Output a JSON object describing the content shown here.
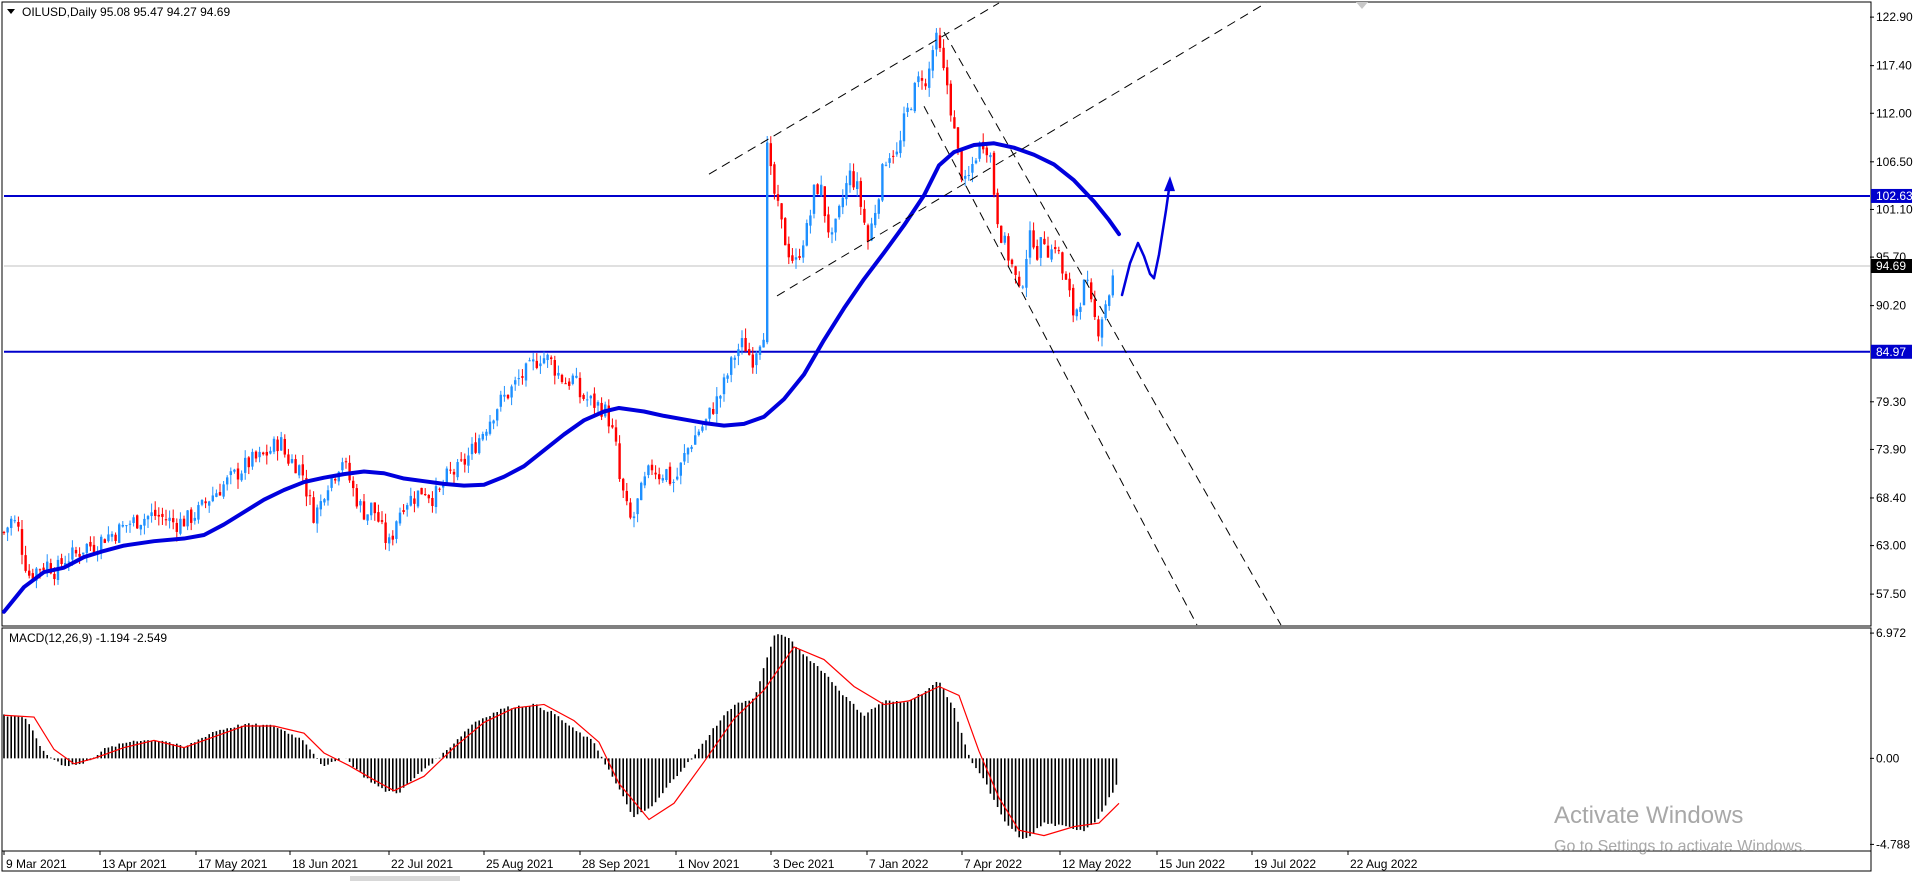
{
  "header": {
    "symbol_line": "OILUSD,Daily  95.08 95.47 94.27 94.69"
  },
  "macd_header": "MACD(12,26,9) -1.194 -2.549",
  "watermark": {
    "line1": "Activate Windows",
    "line2": "Go to Settings to activate Windows."
  },
  "colors": {
    "bull": "#1e90ff",
    "bear": "#ff0000",
    "ma": "#0000dd",
    "hline": "#0000cc",
    "macd_hist": "#000000",
    "macd_signal": "#ff0000",
    "current_line": "#c0c0c0"
  },
  "chart_data": [
    {
      "type": "candlestick",
      "panel": "price",
      "symbol": "OILUSD",
      "timeframe": "Daily",
      "last_bar": {
        "open": 95.08,
        "high": 95.47,
        "low": 94.27,
        "close": 94.69
      },
      "ylim": [
        54.0,
        124.5
      ],
      "yticks": [
        122.9,
        117.4,
        112.0,
        106.5,
        101.1,
        95.7,
        90.2,
        79.3,
        73.9,
        68.4,
        63.0,
        57.5
      ],
      "ytick_labels": [
        "122.90",
        "117.40",
        "112.00",
        "106.50",
        "101.10",
        "95.70",
        "90.20",
        "79.30",
        "73.90",
        "68.40",
        "63.00",
        "57.50"
      ],
      "xtick_labels": [
        "9 Mar 2021",
        "13 Apr 2021",
        "17 May 2021",
        "18 Jun 2021",
        "22 Jul 2021",
        "25 Aug 2021",
        "28 Sep 2021",
        "1 Nov 2021",
        "3 Dec 2021",
        "7 Jan 2022",
        "7 Apr 2022",
        "12 May 2022",
        "15 Jun 2022",
        "19 Jul 2022",
        "22 Aug 2022"
      ],
      "price_path": [
        [
          0,
          64.5
        ],
        [
          8,
          66
        ],
        [
          14,
          65
        ],
        [
          20,
          61.5
        ],
        [
          26,
          59.5
        ],
        [
          34,
          60.5
        ],
        [
          44,
          61
        ],
        [
          52,
          60
        ],
        [
          60,
          61.5
        ],
        [
          72,
          62
        ],
        [
          82,
          63
        ],
        [
          92,
          63
        ],
        [
          100,
          64
        ],
        [
          112,
          64.5
        ],
        [
          124,
          65.5
        ],
        [
          136,
          66
        ],
        [
          150,
          66.5
        ],
        [
          162,
          66
        ],
        [
          172,
          65.5
        ],
        [
          184,
          66
        ],
        [
          196,
          67
        ],
        [
          206,
          68.5
        ],
        [
          216,
          69.5
        ],
        [
          226,
          70.5
        ],
        [
          236,
          71.5
        ],
        [
          246,
          72.5
        ],
        [
          258,
          73
        ],
        [
          268,
          74
        ],
        [
          276,
          75
        ],
        [
          282,
          73
        ],
        [
          290,
          72.5
        ],
        [
          298,
          71.5
        ],
        [
          304,
          68.5
        ],
        [
          310,
          66.5
        ],
        [
          316,
          67.5
        ],
        [
          322,
          70
        ],
        [
          330,
          71
        ],
        [
          338,
          73
        ],
        [
          344,
          71
        ],
        [
          350,
          69
        ],
        [
          356,
          67.5
        ],
        [
          362,
          66.5
        ],
        [
          368,
          67.5
        ],
        [
          374,
          66
        ],
        [
          380,
          64
        ],
        [
          386,
          63
        ],
        [
          392,
          66
        ],
        [
          400,
          68
        ],
        [
          410,
          68.5
        ],
        [
          420,
          69.5
        ],
        [
          428,
          68.5
        ],
        [
          436,
          69
        ],
        [
          444,
          71
        ],
        [
          454,
          71.5
        ],
        [
          464,
          73
        ],
        [
          474,
          75
        ],
        [
          484,
          77
        ],
        [
          494,
          79
        ],
        [
          506,
          80.5
        ],
        [
          516,
          82
        ],
        [
          526,
          83
        ],
        [
          536,
          84.5
        ],
        [
          546,
          84
        ],
        [
          554,
          82.5
        ],
        [
          562,
          81.5
        ],
        [
          570,
          82
        ],
        [
          576,
          80
        ],
        [
          584,
          79.5
        ],
        [
          592,
          79
        ],
        [
          600,
          78.5
        ],
        [
          606,
          77
        ],
        [
          612,
          74
        ],
        [
          616,
          70
        ],
        [
          620,
          68.5
        ],
        [
          624,
          66.5
        ],
        [
          628,
          65.5
        ],
        [
          634,
          68
        ],
        [
          640,
          70
        ],
        [
          648,
          72
        ],
        [
          656,
          71
        ],
        [
          662,
          71.5
        ],
        [
          668,
          70
        ],
        [
          674,
          71
        ],
        [
          680,
          73
        ],
        [
          686,
          74.5
        ],
        [
          694,
          76
        ],
        [
          702,
          77
        ],
        [
          708,
          78.5
        ],
        [
          716,
          80
        ],
        [
          724,
          82.5
        ],
        [
          732,
          85
        ],
        [
          740,
          86
        ],
        [
          748,
          84
        ],
        [
          754,
          86
        ],
        [
          760,
          87.5
        ],
        [
          763,
          108
        ],
        [
          768,
          104
        ],
        [
          774,
          101
        ],
        [
          780,
          98
        ],
        [
          786,
          96
        ],
        [
          792,
          95
        ],
        [
          798,
          97.5
        ],
        [
          804,
          99
        ],
        [
          810,
          103
        ],
        [
          816,
          104
        ],
        [
          822,
          100
        ],
        [
          828,
          97.5
        ],
        [
          834,
          100
        ],
        [
          840,
          103
        ],
        [
          846,
          105
        ],
        [
          852,
          104
        ],
        [
          858,
          101
        ],
        [
          864,
          97.5
        ],
        [
          870,
          100.5
        ],
        [
          876,
          104
        ],
        [
          882,
          107
        ],
        [
          888,
          108
        ],
        [
          894,
          107
        ],
        [
          900,
          111
        ],
        [
          906,
          113
        ],
        [
          912,
          115
        ],
        [
          918,
          116.5
        ],
        [
          922,
          114.5
        ],
        [
          928,
          119
        ],
        [
          934,
          120.5
        ],
        [
          938,
          117
        ],
        [
          944,
          115
        ],
        [
          950,
          110
        ],
        [
          956,
          106
        ],
        [
          962,
          103.5
        ],
        [
          968,
          106
        ],
        [
          974,
          108
        ],
        [
          980,
          109
        ],
        [
          986,
          107.5
        ],
        [
          992,
          101
        ],
        [
          998,
          98
        ],
        [
          1004,
          96
        ],
        [
          1010,
          94
        ],
        [
          1016,
          91
        ],
        [
          1022,
          96
        ],
        [
          1028,
          98.5
        ],
        [
          1034,
          96
        ],
        [
          1040,
          98
        ],
        [
          1046,
          96
        ],
        [
          1052,
          97.5
        ],
        [
          1058,
          94
        ],
        [
          1064,
          92
        ],
        [
          1070,
          89
        ],
        [
          1076,
          91
        ],
        [
          1082,
          93
        ],
        [
          1088,
          89.5
        ],
        [
          1094,
          87.5
        ],
        [
          1100,
          90
        ],
        [
          1106,
          92
        ],
        [
          1112,
          94.7
        ]
      ],
      "moving_average_path": [
        [
          0,
          55.5
        ],
        [
          20,
          58.3
        ],
        [
          40,
          60
        ],
        [
          60,
          60.5
        ],
        [
          80,
          61.7
        ],
        [
          100,
          62.4
        ],
        [
          120,
          63
        ],
        [
          150,
          63.5
        ],
        [
          180,
          63.8
        ],
        [
          200,
          64.2
        ],
        [
          220,
          65.4
        ],
        [
          240,
          66.8
        ],
        [
          260,
          68.2
        ],
        [
          280,
          69.3
        ],
        [
          300,
          70.2
        ],
        [
          320,
          70.7
        ],
        [
          340,
          71.1
        ],
        [
          360,
          71.4
        ],
        [
          380,
          71.2
        ],
        [
          400,
          70.6
        ],
        [
          420,
          70.3
        ],
        [
          440,
          70
        ],
        [
          460,
          69.8
        ],
        [
          480,
          69.9
        ],
        [
          500,
          70.8
        ],
        [
          520,
          72
        ],
        [
          540,
          73.8
        ],
        [
          560,
          75.6
        ],
        [
          580,
          77.2
        ],
        [
          600,
          78.2
        ],
        [
          615,
          78.6
        ],
        [
          640,
          78.2
        ],
        [
          660,
          77.7
        ],
        [
          680,
          77.3
        ],
        [
          700,
          76.9
        ],
        [
          720,
          76.6
        ],
        [
          740,
          76.8
        ],
        [
          760,
          77.6
        ],
        [
          780,
          79.6
        ],
        [
          800,
          82.4
        ],
        [
          820,
          86.3
        ],
        [
          840,
          89.9
        ],
        [
          860,
          93.2
        ],
        [
          880,
          96.2
        ],
        [
          900,
          99.3
        ],
        [
          920,
          102.7
        ],
        [
          935,
          106.1
        ],
        [
          950,
          107.6
        ],
        [
          970,
          108.4
        ],
        [
          990,
          108.6
        ],
        [
          1010,
          108.1
        ],
        [
          1030,
          107.3
        ],
        [
          1050,
          106.2
        ],
        [
          1070,
          104.4
        ],
        [
          1090,
          102
        ],
        [
          1105,
          99.9
        ],
        [
          1115,
          98.3
        ]
      ],
      "horizontal_levels": [
        {
          "value": 102.63,
          "label": "102.63"
        },
        {
          "value": 84.97,
          "label": "84.97"
        }
      ],
      "current_price": {
        "value": 94.69,
        "label": "94.69"
      },
      "trendlines_dashed": [
        [
          [
            705,
            105.1
          ],
          [
            995,
            124.5
          ]
        ],
        [
          [
            773,
            91.3
          ],
          [
            1262,
            124.5
          ]
        ],
        [
          [
            920,
            112.8
          ],
          [
            1193,
            54.0
          ]
        ],
        [
          [
            940,
            121.2
          ],
          [
            1277,
            54.0
          ]
        ]
      ],
      "forecast_path": [
        [
          1118,
          91.4
        ],
        [
          1126,
          95
        ],
        [
          1134,
          97.3
        ],
        [
          1140,
          95.8
        ],
        [
          1146,
          93.8
        ],
        [
          1150,
          93.3
        ],
        [
          1155,
          96
        ],
        [
          1162,
          101
        ],
        [
          1166,
          104.2
        ]
      ]
    },
    {
      "type": "bar",
      "panel": "macd",
      "name": "MACD(12,26,9)",
      "last_values": {
        "macd": -1.194,
        "signal": -2.549
      },
      "ylim": [
        -5.1,
        7.2
      ],
      "yticks": [
        6.972,
        0.0,
        -4.788
      ],
      "ytick_labels": [
        "6.972",
        "0.00",
        "-4.788"
      ],
      "histogram_path": [
        [
          0,
          2.4
        ],
        [
          20,
          2.3
        ],
        [
          30,
          1.4
        ],
        [
          40,
          0.3
        ],
        [
          60,
          -0.4
        ],
        [
          80,
          -0.3
        ],
        [
          100,
          0.5
        ],
        [
          130,
          1.0
        ],
        [
          160,
          1.0
        ],
        [
          180,
          0.6
        ],
        [
          210,
          1.5
        ],
        [
          240,
          1.9
        ],
        [
          270,
          1.8
        ],
        [
          300,
          1.0
        ],
        [
          320,
          -0.5
        ],
        [
          340,
          0.1
        ],
        [
          360,
          -1.0
        ],
        [
          380,
          -1.8
        ],
        [
          395,
          -1.9
        ],
        [
          420,
          -0.6
        ],
        [
          440,
          0.3
        ],
        [
          470,
          2.0
        ],
        [
          500,
          2.8
        ],
        [
          530,
          3.0
        ],
        [
          550,
          2.5
        ],
        [
          570,
          1.6
        ],
        [
          590,
          0.9
        ],
        [
          610,
          -1.2
        ],
        [
          630,
          -3.3
        ],
        [
          650,
          -2.6
        ],
        [
          670,
          -1.1
        ],
        [
          690,
          0.1
        ],
        [
          710,
          1.7
        ],
        [
          730,
          3.0
        ],
        [
          750,
          3.3
        ],
        [
          770,
          6.8
        ],
        [
          780,
          6.9
        ],
        [
          800,
          5.8
        ],
        [
          820,
          4.8
        ],
        [
          840,
          3.5
        ],
        [
          860,
          2.4
        ],
        [
          880,
          3.2
        ],
        [
          900,
          3.1
        ],
        [
          920,
          3.7
        ],
        [
          935,
          4.3
        ],
        [
          950,
          2.8
        ],
        [
          965,
          0.1
        ],
        [
          980,
          -1.2
        ],
        [
          1000,
          -3.5
        ],
        [
          1020,
          -4.6
        ],
        [
          1040,
          -3.6
        ],
        [
          1060,
          -3.8
        ],
        [
          1080,
          -4.0
        ],
        [
          1095,
          -3.3
        ],
        [
          1115,
          -1.2
        ]
      ],
      "signal_path": [
        [
          0,
          2.4
        ],
        [
          30,
          2.3
        ],
        [
          50,
          0.5
        ],
        [
          70,
          -0.3
        ],
        [
          90,
          0.0
        ],
        [
          120,
          0.6
        ],
        [
          150,
          1.0
        ],
        [
          180,
          0.6
        ],
        [
          210,
          1.2
        ],
        [
          240,
          1.8
        ],
        [
          270,
          1.8
        ],
        [
          300,
          1.4
        ],
        [
          320,
          0.3
        ],
        [
          345,
          -0.4
        ],
        [
          370,
          -1.2
        ],
        [
          390,
          -1.8
        ],
        [
          420,
          -1.0
        ],
        [
          450,
          0.6
        ],
        [
          480,
          2.0
        ],
        [
          510,
          2.8
        ],
        [
          540,
          3.0
        ],
        [
          570,
          2.1
        ],
        [
          595,
          0.9
        ],
        [
          615,
          -1.4
        ],
        [
          645,
          -3.4
        ],
        [
          670,
          -2.5
        ],
        [
          700,
          -0.2
        ],
        [
          730,
          2.2
        ],
        [
          760,
          3.8
        ],
        [
          790,
          6.2
        ],
        [
          820,
          5.5
        ],
        [
          850,
          4.0
        ],
        [
          880,
          3.0
        ],
        [
          905,
          3.2
        ],
        [
          935,
          4.0
        ],
        [
          955,
          3.5
        ],
        [
          975,
          0.4
        ],
        [
          995,
          -2.2
        ],
        [
          1015,
          -4.0
        ],
        [
          1040,
          -4.3
        ],
        [
          1070,
          -3.8
        ],
        [
          1095,
          -3.6
        ],
        [
          1115,
          -2.5
        ]
      ]
    }
  ]
}
